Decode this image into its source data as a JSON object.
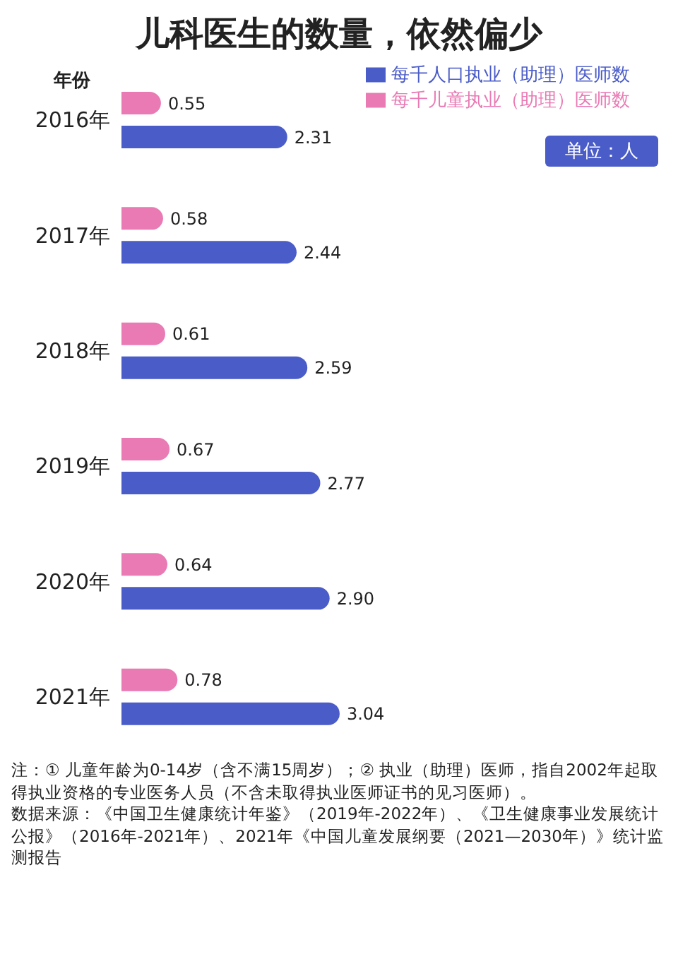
{
  "chart_data": {
    "type": "bar",
    "orientation": "horizontal",
    "title": "儿科医生的数量，依然偏少",
    "ylabel": "年份",
    "categories": [
      "2016年",
      "2017年",
      "2018年",
      "2019年",
      "2020年",
      "2021年"
    ],
    "series": [
      {
        "name": "每千儿童执业（助理）医师数",
        "color": "#e97ab4",
        "values": [
          0.55,
          0.58,
          0.61,
          0.67,
          0.64,
          0.78
        ],
        "value_labels": [
          "0.55",
          "0.58",
          "0.61",
          "0.67",
          "0.64",
          "0.78"
        ]
      },
      {
        "name": "每千人口执业（助理）医师数",
        "color": "#4a5cc8",
        "values": [
          2.31,
          2.44,
          2.59,
          2.77,
          2.9,
          3.04
        ],
        "value_labels": [
          "2.31",
          "2.44",
          "2.59",
          "2.77",
          "2.90",
          "3.04"
        ]
      }
    ],
    "legend": "top right",
    "grid": false,
    "annotations": [
      "单位：人",
      "注：① 儿童年龄为0-14岁（含不满15周岁）；② 执业（助理）医师，指自2002年起取得执业资格的专业医务人员（不含未取得执业医师证书的见习医师）。",
      "数据来源：《中国卫生健康统计年鉴》（2019年-2022年）、《卫生健康事业发展统计公报》（2016年-2021年）、2021年《中国儿童发展纲要（2021—2030年）》统计监测报告"
    ]
  }
}
